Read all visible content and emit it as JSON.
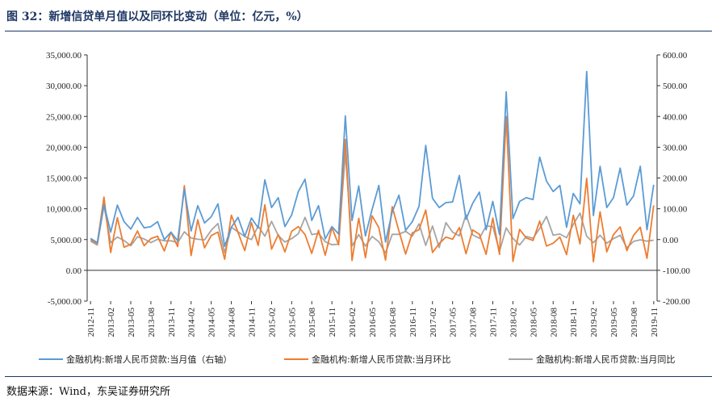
{
  "title": "图 32：新增信贷单月值以及同环比变动（单位：亿元，%）",
  "source": "数据来源：Wind，东吴证券研究所",
  "chart_data": {
    "type": "line",
    "title": "图 32：新增信贷单月值以及同环比变动（单位：亿元，%）",
    "left_axis": {
      "ylim": [
        -5000,
        35000
      ],
      "ticks": [
        "-5,000.00",
        "0.00",
        "5,000.00",
        "10,000.00",
        "15,000.00",
        "20,000.00",
        "25,000.00",
        "30,000.00",
        "35,000.00"
      ]
    },
    "right_axis": {
      "ylim": [
        -200,
        600
      ],
      "ticks": [
        "-200.00",
        "-100.00",
        "0.00",
        "100.00",
        "200.00",
        "300.00",
        "400.00",
        "500.00",
        "600.00"
      ]
    },
    "x_tick_labels": [
      "2012-11",
      "2013-02",
      "2013-05",
      "2013-08",
      "2013-11",
      "2014-02",
      "2014-05",
      "2014-08",
      "2014-11",
      "2015-02",
      "2015-05",
      "2015-08",
      "2015-11",
      "2016-02",
      "2016-05",
      "2016-08",
      "2016-11",
      "2017-02",
      "2017-05",
      "2017-08",
      "2017-11",
      "2018-02",
      "2018-05",
      "2018-08",
      "2018-11",
      "2019-02",
      "2019-05",
      "2019-08",
      "2019-11"
    ],
    "x": [
      "2012-11",
      "2012-12",
      "2013-01",
      "2013-02",
      "2013-03",
      "2013-04",
      "2013-05",
      "2013-06",
      "2013-07",
      "2013-08",
      "2013-09",
      "2013-10",
      "2013-11",
      "2013-12",
      "2014-01",
      "2014-02",
      "2014-03",
      "2014-04",
      "2014-05",
      "2014-06",
      "2014-07",
      "2014-08",
      "2014-09",
      "2014-10",
      "2014-11",
      "2014-12",
      "2015-01",
      "2015-02",
      "2015-03",
      "2015-04",
      "2015-05",
      "2015-06",
      "2015-07",
      "2015-08",
      "2015-09",
      "2015-10",
      "2015-11",
      "2015-12",
      "2016-01",
      "2016-02",
      "2016-03",
      "2016-04",
      "2016-05",
      "2016-06",
      "2016-07",
      "2016-08",
      "2016-09",
      "2016-10",
      "2016-11",
      "2016-12",
      "2017-01",
      "2017-02",
      "2017-03",
      "2017-04",
      "2017-05",
      "2017-06",
      "2017-07",
      "2017-08",
      "2017-09",
      "2017-10",
      "2017-11",
      "2017-12",
      "2018-01",
      "2018-02",
      "2018-03",
      "2018-04",
      "2018-05",
      "2018-06",
      "2018-07",
      "2018-08",
      "2018-09",
      "2018-10",
      "2018-11",
      "2018-12",
      "2019-01",
      "2019-02",
      "2019-03",
      "2019-04",
      "2019-05",
      "2019-06",
      "2019-07",
      "2019-08",
      "2019-09",
      "2019-10",
      "2019-11"
    ],
    "series": [
      {
        "name": "金融机构:新增人民币贷款:当月值（右轴）",
        "axis": "left",
        "color": "#5b9bd5",
        "values": [
          5200,
          4500,
          10700,
          6200,
          10600,
          7900,
          6700,
          8600,
          6900,
          7100,
          7900,
          5000,
          6200,
          4800,
          13200,
          6400,
          10500,
          7700,
          8700,
          10800,
          3900,
          7000,
          8600,
          5500,
          8500,
          6900,
          14700,
          10200,
          11800,
          7100,
          9000,
          12800,
          14800,
          8100,
          10500,
          5100,
          7100,
          5900,
          25100,
          8100,
          13700,
          5600,
          9900,
          13800,
          4600,
          9500,
          12200,
          6500,
          7900,
          10400,
          20300,
          11700,
          10200,
          11000,
          11100,
          15400,
          8300,
          10900,
          12700,
          6600,
          11200,
          5800,
          29000,
          8400,
          11200,
          11800,
          11500,
          18400,
          14500,
          12800,
          13800,
          7000,
          12500,
          10800,
          32300,
          8900,
          16900,
          10200,
          11800,
          16600,
          10600,
          12100,
          16900,
          6600,
          13900
        ]
      },
      {
        "name": "金融机构:新增人民币贷款:当月环比",
        "axis": "right",
        "color": "#ed7d31",
        "values": [
          0,
          -13,
          138,
          -42,
          71,
          -25,
          -15,
          28,
          -20,
          3,
          11,
          -37,
          24,
          -23,
          175,
          -52,
          64,
          -27,
          13,
          24,
          -64,
          79,
          23,
          -36,
          55,
          -19,
          113,
          -31,
          16,
          -40,
          27,
          42,
          16,
          -45,
          30,
          -51,
          39,
          -17,
          325,
          -68,
          69,
          -59,
          77,
          39,
          -67,
          107,
          28,
          -47,
          22,
          32,
          96,
          -42,
          -13,
          8,
          1,
          39,
          -46,
          31,
          17,
          -48,
          70,
          -48,
          400,
          -71,
          33,
          5,
          -3,
          60,
          -21,
          -12,
          8,
          -49,
          79,
          -14,
          199,
          -72,
          90,
          -40,
          16,
          41,
          -36,
          14,
          40,
          -61,
          111
        ]
      },
      {
        "name": "金融机构:新增人民币贷款:当月同比",
        "axis": "right",
        "color": "#a5a5a5",
        "values": [
          -5,
          -18,
          110,
          -10,
          8,
          -3,
          -20,
          9,
          2,
          -10,
          1,
          -4,
          -4,
          -10,
          25,
          5,
          1,
          -1,
          30,
          52,
          -43,
          40,
          25,
          10,
          0,
          44,
          11,
          59,
          13,
          -8,
          3,
          19,
          72,
          16,
          20,
          -7,
          -17,
          -15,
          283,
          -21,
          16,
          -21,
          10,
          -7,
          -44,
          17,
          17,
          27,
          11,
          51,
          -19,
          44,
          -26,
          55,
          24,
          12,
          81,
          15,
          4,
          44,
          42,
          -38,
          38,
          4,
          -18,
          10,
          4,
          36,
          75,
          14,
          18,
          6,
          49,
          86,
          11,
          -10,
          14,
          -12,
          3,
          14,
          -27,
          -6,
          -1,
          -5,
          -2
        ]
      }
    ],
    "legend": [
      "金融机构:新增人民币贷款:当月值（右轴）",
      "金融机构:新增人民币贷款:当月环比",
      "金融机构:新增人民币贷款:当月同比"
    ],
    "legend_position": "bottom",
    "grid": false
  }
}
